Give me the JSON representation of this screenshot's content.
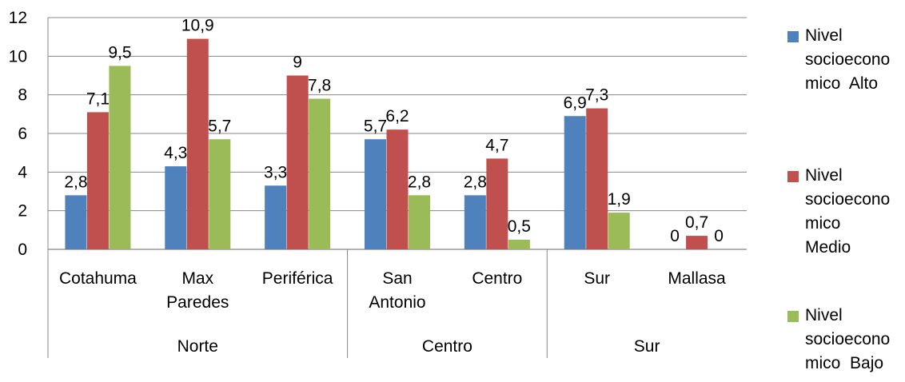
{
  "chart_data": {
    "type": "bar",
    "groups": [
      {
        "label": "Norte",
        "categories": [
          "Cotahuma",
          "Max Paredes",
          "Periférica"
        ]
      },
      {
        "label": "Centro",
        "categories": [
          "San Antonio",
          "Centro"
        ]
      },
      {
        "label": "Sur",
        "categories": [
          "Sur",
          "Mallasa"
        ]
      }
    ],
    "categories": [
      "Cotahuma",
      "Max Paredes",
      "Periférica",
      "San Antonio",
      "Centro",
      "Sur",
      "Mallasa"
    ],
    "category_lines": [
      [
        "Cotahuma"
      ],
      [
        "Max",
        "Paredes"
      ],
      [
        "Periférica"
      ],
      [
        "San",
        "Antonio"
      ],
      [
        "Centro"
      ],
      [
        "Sur"
      ],
      [
        "Mallasa"
      ]
    ],
    "series": [
      {
        "name": "Nivel socioeconomico Alto",
        "legend_lines": [
          "Nivel",
          "socioecono",
          "mico  Alto"
        ],
        "color": "#4F81BD",
        "values": [
          2.8,
          4.3,
          3.3,
          5.7,
          2.8,
          6.9,
          0
        ],
        "labels": [
          "2,8",
          "4,3",
          "3,3",
          "5,7",
          "2,8",
          "6,9",
          "0"
        ]
      },
      {
        "name": "Nivel socioeconomico Medio",
        "legend_lines": [
          "Nivel",
          "socioecono",
          "mico",
          "Medio"
        ],
        "color": "#C0504D",
        "values": [
          7.1,
          10.9,
          9,
          6.2,
          4.7,
          7.3,
          0.7
        ],
        "labels": [
          "7,1",
          "10,9",
          "9",
          "6,2",
          "4,7",
          "7,3",
          "0,7"
        ]
      },
      {
        "name": "Nivel socioeconomico Bajo",
        "legend_lines": [
          "Nivel",
          "socioecono",
          "mico  Bajo"
        ],
        "color": "#9BBB59",
        "values": [
          9.5,
          5.7,
          7.8,
          2.8,
          0.5,
          1.9,
          0
        ],
        "labels": [
          "9,5",
          "5,7",
          "7,8",
          "2,8",
          "0,5",
          "1,9",
          "0"
        ]
      }
    ],
    "yticks": [
      "0",
      "2",
      "4",
      "6",
      "8",
      "10",
      "12"
    ],
    "ylim": [
      0,
      12
    ],
    "grid": true,
    "legend": "right",
    "title": "",
    "xlabel": "",
    "ylabel": ""
  }
}
